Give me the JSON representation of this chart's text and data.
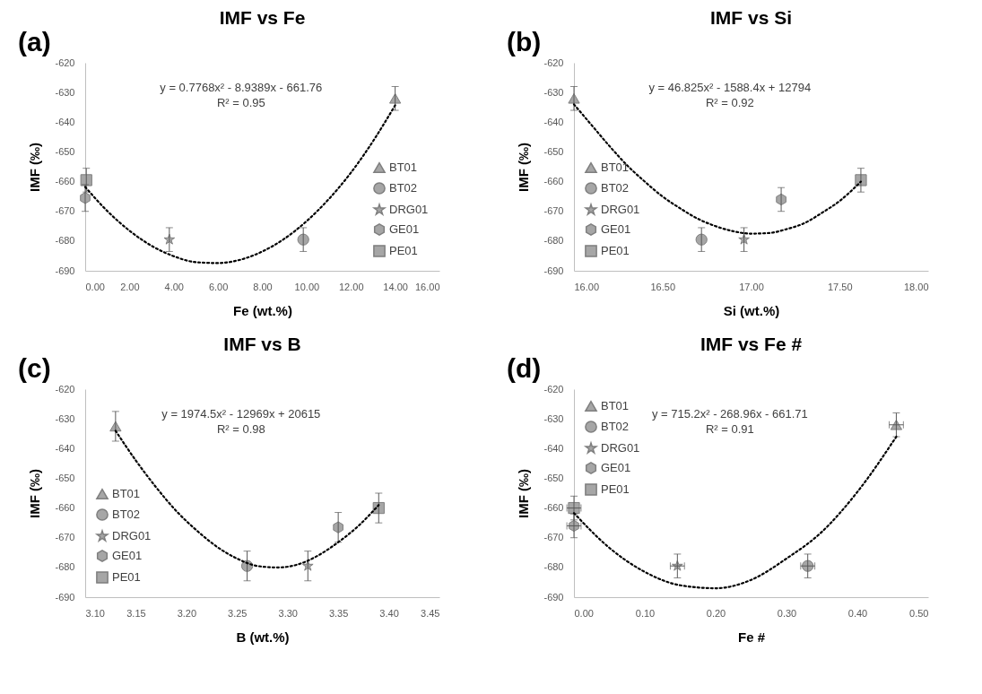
{
  "chart_data": [
    {
      "type": "scatter",
      "title": "IMF vs Fe",
      "xlabel": "Fe (wt.%)",
      "ylabel": "IMF (‰)",
      "annotations": [
        "(a)",
        "y = 0.7768x² - 8.9389x - 661.76",
        "R² = 0.95"
      ],
      "xlim": [
        0,
        16
      ],
      "xticks": [
        {
          "value": 0,
          "label": "0.00"
        },
        {
          "value": 2,
          "label": "2.00"
        },
        {
          "value": 4,
          "label": "4.00"
        },
        {
          "value": 6,
          "label": "6.00"
        },
        {
          "value": 8,
          "label": "8.00"
        },
        {
          "value": 10,
          "label": "10.00"
        },
        {
          "value": 12,
          "label": "12.00"
        },
        {
          "value": 14,
          "label": "14.00"
        },
        {
          "value": 16,
          "label": "16.00"
        }
      ],
      "ylim": [
        -690,
        -620
      ],
      "yticks": [
        -690,
        -680,
        -670,
        -660,
        -650,
        -640,
        -630,
        -620
      ],
      "legend": "bottom right",
      "series": [
        {
          "name": "BT01",
          "color": "#a6a6a6",
          "marker": "triangle",
          "x": [
            14.0
          ],
          "values": [
            -632
          ],
          "errors": [
            4
          ]
        },
        {
          "name": "BT02",
          "color": "#a6a6a6",
          "marker": "circle",
          "x": [
            9.85
          ],
          "values": [
            -679.5
          ],
          "errors": [
            4
          ]
        },
        {
          "name": "DRG01",
          "color": "#a6a6a6",
          "marker": "star",
          "x": [
            3.8
          ],
          "values": [
            -679.5
          ],
          "errors": [
            4
          ]
        },
        {
          "name": "GE01",
          "color": "#a6a6a6",
          "x": [
            0.0
          ],
          "values": [
            -665.5
          ],
          "errors": [
            4.5
          ]
        },
        {
          "name": "PE01",
          "color": "#a6a6a6",
          "marker": "square",
          "x": [
            0.05
          ],
          "values": [
            -659.5
          ],
          "errors": [
            4
          ]
        },
        {
          "type": "line",
          "color": "#000000",
          "line_style": "dotted",
          "marker": "none",
          "x": [
            0,
            1,
            2,
            3,
            4,
            5,
            6,
            7,
            8,
            9,
            10,
            11,
            12,
            13,
            14
          ],
          "values": [
            -661.8,
            -669.9,
            -676.5,
            -681.6,
            -685.1,
            -687.1,
            -687.4,
            -686.3,
            -683.5,
            -679.2,
            -673.3,
            -665.9,
            -657,
            -646.4,
            -634.3
          ]
        }
      ]
    },
    {
      "type": "scatter",
      "title": "IMF vs Si",
      "xlabel": "Si (wt.%)",
      "ylabel": "IMF (‰)",
      "annotations": [
        "(b)",
        "y = 46.825x² - 1588.4x + 12794",
        "R² = 0.92"
      ],
      "xlim": [
        16,
        18
      ],
      "xticks": [
        {
          "value": 16,
          "label": "16.00"
        },
        {
          "value": 16.5,
          "label": "16.50"
        },
        {
          "value": 17,
          "label": "17.00"
        },
        {
          "value": 17.5,
          "label": "17.50"
        },
        {
          "value": 18,
          "label": "18.00"
        }
      ],
      "ylim": [
        -690,
        -620
      ],
      "yticks": [
        -690,
        -680,
        -670,
        -660,
        -650,
        -640,
        -630,
        -620
      ],
      "legend": "bottom left",
      "series": [
        {
          "name": "BT01",
          "color": "#a6a6a6",
          "marker": "triangle",
          "x": [
            16.0
          ],
          "values": [
            -632
          ],
          "errors": [
            4
          ]
        },
        {
          "name": "BT02",
          "color": "#a6a6a6",
          "marker": "circle",
          "x": [
            16.72
          ],
          "values": [
            -679.5
          ],
          "errors": [
            4
          ]
        },
        {
          "name": "DRG01",
          "color": "#a6a6a6",
          "marker": "star",
          "x": [
            16.96
          ],
          "values": [
            -679.5
          ],
          "errors": [
            4
          ]
        },
        {
          "name": "GE01",
          "color": "#a6a6a6",
          "x": [
            17.17
          ],
          "values": [
            -666
          ],
          "errors": [
            4
          ]
        },
        {
          "name": "PE01",
          "color": "#a6a6a6",
          "marker": "square",
          "x": [
            17.62
          ],
          "values": [
            -659.5
          ],
          "errors": [
            4
          ]
        },
        {
          "type": "line",
          "color": "#000000",
          "line_style": "dotted",
          "marker": "none",
          "x": [
            16.0,
            16.1,
            16.2,
            16.3,
            16.4,
            16.5,
            16.6,
            16.7,
            16.8,
            16.9,
            17.0,
            17.1,
            17.2,
            17.3,
            17.4,
            17.5,
            17.62
          ],
          "values": [
            -634,
            -641,
            -648,
            -654.5,
            -660,
            -665,
            -669,
            -672.5,
            -675,
            -676.7,
            -677.5,
            -677.3,
            -676,
            -674,
            -670.5,
            -666.5,
            -660
          ]
        }
      ]
    },
    {
      "type": "scatter",
      "title": "IMF vs B",
      "xlabel": "B (wt.%)",
      "ylabel": "IMF (‰)",
      "annotations": [
        "(c)",
        "y = 1974.5x² - 12969x + 20615",
        "R² = 0.98"
      ],
      "xlim": [
        3.1,
        3.45
      ],
      "xticks": [
        {
          "value": 3.1,
          "label": "3.10"
        },
        {
          "value": 3.15,
          "label": "3.15"
        },
        {
          "value": 3.2,
          "label": "3.20"
        },
        {
          "value": 3.25,
          "label": "3.25"
        },
        {
          "value": 3.3,
          "label": "3.30"
        },
        {
          "value": 3.35,
          "label": "3.35"
        },
        {
          "value": 3.4,
          "label": "3.40"
        },
        {
          "value": 3.45,
          "label": "3.45"
        }
      ],
      "ylim": [
        -690,
        -620
      ],
      "yticks": [
        -690,
        -680,
        -670,
        -660,
        -650,
        -640,
        -630,
        -620
      ],
      "legend": "bottom left",
      "series": [
        {
          "name": "BT01",
          "color": "#a6a6a6",
          "marker": "triangle",
          "x": [
            3.13
          ],
          "values": [
            -632.5
          ],
          "errors": [
            5
          ]
        },
        {
          "name": "BT02",
          "color": "#a6a6a6",
          "marker": "circle",
          "x": [
            3.26
          ],
          "values": [
            -679.5
          ],
          "errors": [
            5
          ]
        },
        {
          "name": "DRG01",
          "color": "#a6a6a6",
          "marker": "star",
          "x": [
            3.32
          ],
          "values": [
            -679.5
          ],
          "errors": [
            5
          ]
        },
        {
          "name": "GE01",
          "color": "#a6a6a6",
          "x": [
            3.35
          ],
          "values": [
            -666.5
          ],
          "errors": [
            5
          ]
        },
        {
          "name": "PE01",
          "color": "#a6a6a6",
          "marker": "square",
          "x": [
            3.39
          ],
          "values": [
            -660
          ],
          "errors": [
            5
          ]
        },
        {
          "type": "line",
          "color": "#000000",
          "line_style": "dotted",
          "marker": "none",
          "x": [
            3.13,
            3.15,
            3.17,
            3.19,
            3.21,
            3.23,
            3.25,
            3.27,
            3.29,
            3.31,
            3.33,
            3.35,
            3.37,
            3.39
          ],
          "values": [
            -634,
            -644,
            -653,
            -661,
            -667.5,
            -673,
            -677,
            -679.5,
            -680,
            -679,
            -676,
            -671.5,
            -666,
            -659
          ]
        }
      ]
    },
    {
      "type": "scatter",
      "title": "IMF vs Fe #",
      "xlabel": "Fe #",
      "ylabel": "IMF (‰)",
      "annotations": [
        "(d)",
        "y = 715.2x² - 268.96x - 661.71",
        "R² = 0.91"
      ],
      "xlim": [
        0,
        0.5
      ],
      "xticks": [
        {
          "value": 0,
          "label": "0.00"
        },
        {
          "value": 0.1,
          "label": "0.10"
        },
        {
          "value": 0.2,
          "label": "0.20"
        },
        {
          "value": 0.3,
          "label": "0.30"
        },
        {
          "value": 0.4,
          "label": "0.40"
        },
        {
          "value": 0.5,
          "label": "0.50"
        }
      ],
      "ylim": [
        -690,
        -620
      ],
      "yticks": [
        -690,
        -680,
        -670,
        -660,
        -650,
        -640,
        -630,
        -620
      ],
      "legend": "top left",
      "series": [
        {
          "name": "BT01",
          "color": "#a6a6a6",
          "marker": "triangle",
          "x": [
            0.455
          ],
          "values": [
            -632
          ],
          "errors": [
            4
          ],
          "xerrors": [
            0.01
          ]
        },
        {
          "name": "BT02",
          "color": "#a6a6a6",
          "marker": "circle",
          "x": [
            0.33
          ],
          "values": [
            -679.5
          ],
          "errors": [
            4
          ],
          "xerrors": [
            0.01
          ]
        },
        {
          "name": "DRG01",
          "color": "#a6a6a6",
          "marker": "star",
          "x": [
            0.146
          ],
          "values": [
            -679.5
          ],
          "errors": [
            4
          ],
          "xerrors": [
            0.01
          ]
        },
        {
          "name": "GE01",
          "color": "#a6a6a6",
          "x": [
            0.0
          ],
          "values": [
            -666
          ],
          "errors": [
            4
          ],
          "xerrors": [
            0.01
          ]
        },
        {
          "name": "PE01",
          "color": "#a6a6a6",
          "marker": "square",
          "x": [
            0.0
          ],
          "values": [
            -660
          ],
          "errors": [
            4
          ],
          "xerrors": [
            0.01
          ]
        },
        {
          "type": "line",
          "color": "#000000",
          "line_style": "dotted",
          "marker": "none",
          "x": [
            0,
            0.05,
            0.1,
            0.15,
            0.2,
            0.25,
            0.3,
            0.35,
            0.4,
            0.455
          ],
          "values": [
            -661.7,
            -673.4,
            -681.5,
            -686,
            -687,
            -684.2,
            -677,
            -668,
            -654.6,
            -636
          ]
        }
      ]
    }
  ]
}
